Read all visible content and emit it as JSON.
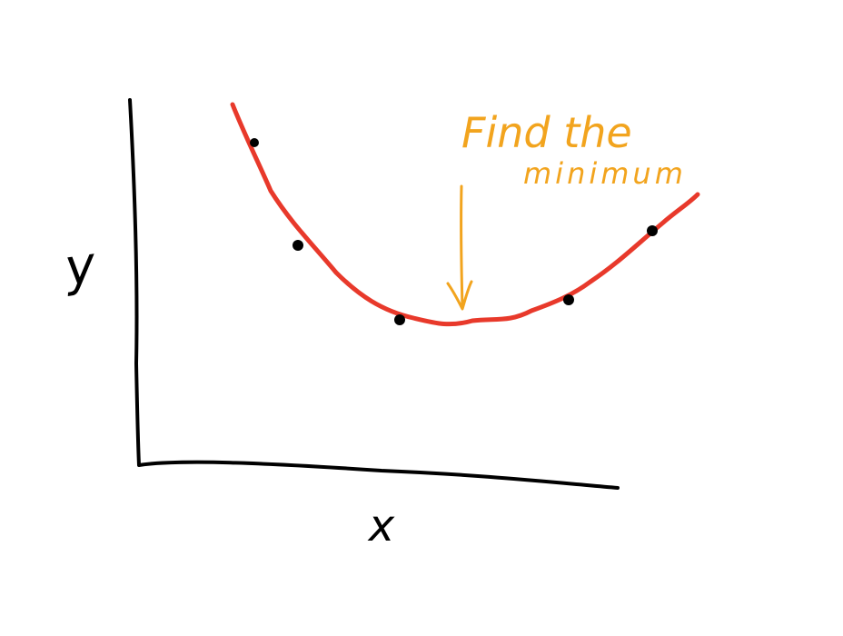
{
  "axes": {
    "x_label": "x",
    "y_label": "y"
  },
  "annotation": {
    "lines": [
      "Find the",
      "minimum"
    ]
  }
}
